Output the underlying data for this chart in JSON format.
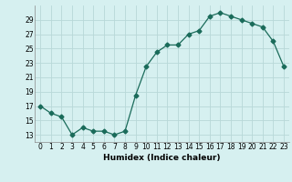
{
  "x": [
    0,
    1,
    2,
    3,
    4,
    5,
    6,
    7,
    8,
    9,
    10,
    11,
    12,
    13,
    14,
    15,
    16,
    17,
    18,
    19,
    20,
    21,
    22,
    23
  ],
  "y": [
    17,
    16,
    15.5,
    13,
    14,
    13.5,
    13.5,
    13,
    13.5,
    18.5,
    22.5,
    24.5,
    25.5,
    25.5,
    27,
    27.5,
    29.5,
    30,
    29.5,
    29,
    28.5,
    28,
    26,
    22.5
  ],
  "xlabel": "Humidex (Indice chaleur)",
  "xlim": [
    -0.5,
    23.5
  ],
  "ylim": [
    12,
    31
  ],
  "yticks": [
    13,
    15,
    17,
    19,
    21,
    23,
    25,
    27,
    29
  ],
  "xticks": [
    0,
    1,
    2,
    3,
    4,
    5,
    6,
    7,
    8,
    9,
    10,
    11,
    12,
    13,
    14,
    15,
    16,
    17,
    18,
    19,
    20,
    21,
    22,
    23
  ],
  "line_color": "#1a6b5a",
  "marker": "D",
  "marker_size": 2.5,
  "bg_color": "#d6f0f0",
  "grid_color": "#b8d8d8",
  "axis_fontsize": 6.5,
  "tick_fontsize": 5.5
}
